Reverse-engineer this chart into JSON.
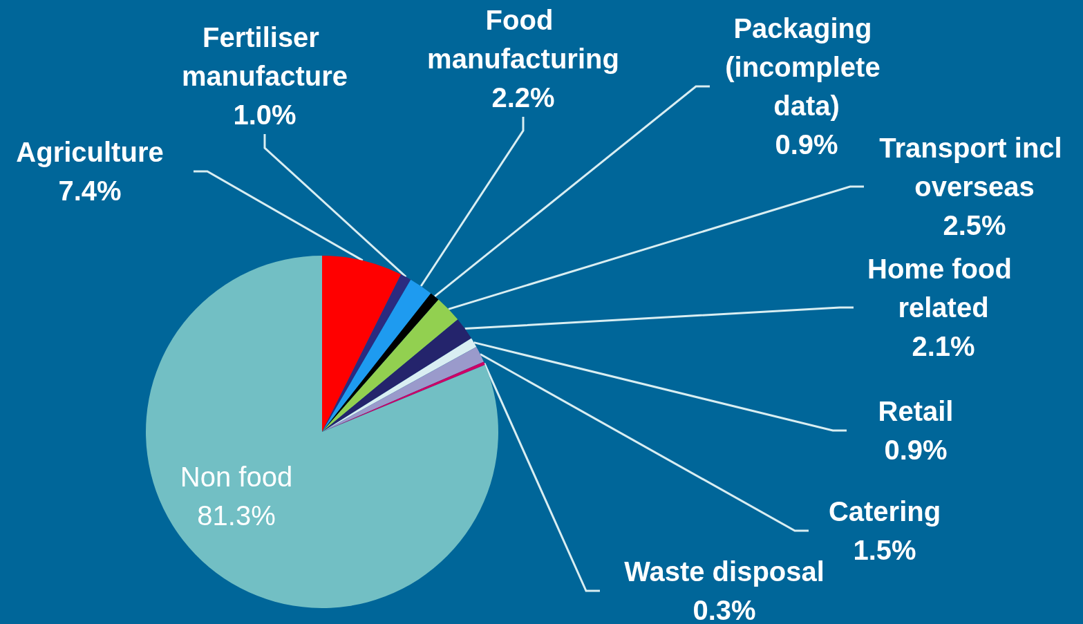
{
  "chart_data": {
    "type": "pie",
    "categories": [
      "Agriculture",
      "Fertiliser manufacture",
      "Food manufacturing",
      "Packaging (incomplete data)",
      "Transport incl overseas",
      "Home food related",
      "Retail",
      "Catering",
      "Waste disposal",
      "Non food"
    ],
    "values": [
      7.4,
      1.0,
      2.2,
      0.9,
      2.5,
      2.1,
      0.9,
      1.5,
      0.3,
      81.3
    ],
    "value_labels": [
      "7.4%",
      "1.0%",
      "2.2%",
      "0.9%",
      "2.5%",
      "2.1%",
      "0.9%",
      "1.5%",
      "0.3%",
      "81.3%"
    ],
    "colors": [
      "#ff0000",
      "#2b2b80",
      "#1e9bf0",
      "#000000",
      "#92d050",
      "#24246c",
      "#d9eef2",
      "#9a9acb",
      "#cc0066",
      "#72bfc4"
    ],
    "legend": false
  }
}
